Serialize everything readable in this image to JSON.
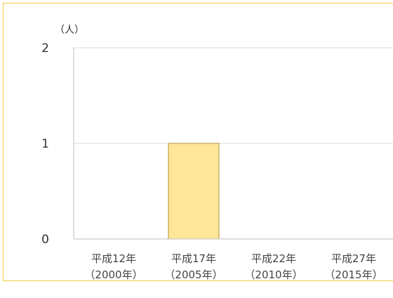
{
  "chart_data": {
    "type": "bar",
    "title": "",
    "xlabel": "",
    "ylabel": "（人）",
    "ylim": [
      0,
      2
    ],
    "yticks": [
      "0",
      "1",
      "2"
    ],
    "categories": [
      [
        "平成12年",
        "（2000年）"
      ],
      [
        "平成17年",
        "（2005年）"
      ],
      [
        "平成22年",
        "（2010年）"
      ],
      [
        "平成27年",
        "（2015年）"
      ]
    ],
    "values": [
      0,
      1,
      0,
      0
    ],
    "grid": true,
    "bar_color": "#ffe699",
    "bar_border": "#b08f3a",
    "gridline_color": "#d9d9d9",
    "frame_color": "#f2cf3a"
  }
}
